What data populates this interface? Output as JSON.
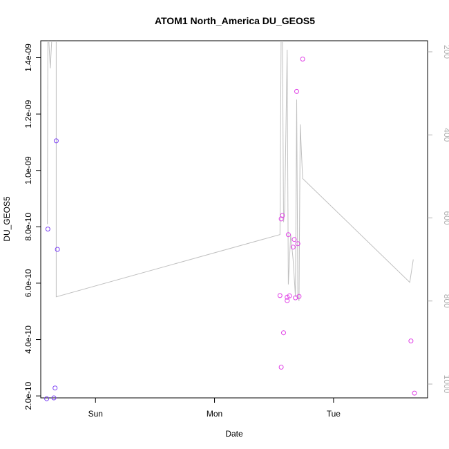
{
  "chart_data": {
    "type": "scatter",
    "title": "ATOM1 North_America DU_GEOS5",
    "xlabel": "Date",
    "ylabel": "DU_GEOS5",
    "x_ticks": [
      {
        "label": "Sun",
        "value": 1.0
      },
      {
        "label": "Mon",
        "value": 2.0
      },
      {
        "label": "Tue",
        "value": 3.0
      }
    ],
    "xlim": [
      0.54,
      3.79
    ],
    "ylim": [
      1.93e-10,
      1.46e-09
    ],
    "y_ticks": [
      {
        "label": "2.0e-10",
        "value": 2e-10
      },
      {
        "label": "4.0e-10",
        "value": 4e-10
      },
      {
        "label": "6.0e-10",
        "value": 6e-10
      },
      {
        "label": "8.0e-10",
        "value": 8e-10
      },
      {
        "label": "1.0e-09",
        "value": 1e-09
      },
      {
        "label": "1.2e-09",
        "value": 1.2e-09
      },
      {
        "label": "1.4e-09",
        "value": 1.4e-09
      }
    ],
    "right_axis": {
      "color": "#b0b0b0",
      "ticks": [
        {
          "label": "200",
          "value": 200
        },
        {
          "label": "400",
          "value": 400
        },
        {
          "label": "600",
          "value": 600
        },
        {
          "label": "800",
          "value": 800
        },
        {
          "label": "1000",
          "value": 1000
        }
      ]
    },
    "line": {
      "color": "#c0c0c0",
      "points": [
        {
          "x": 0.596,
          "y_right": 615
        },
        {
          "x": 0.6,
          "y_right": 140
        },
        {
          "x": 0.6,
          "y_right": 130
        },
        {
          "x": 0.62,
          "y_right": 240
        },
        {
          "x": 0.64,
          "y_right": 130
        },
        {
          "x": 0.67,
          "y_right": 120
        },
        {
          "x": 0.67,
          "y_right": 790
        },
        {
          "x": 2.55,
          "y_right": 640
        },
        {
          "x": 2.56,
          "y_right": 125
        },
        {
          "x": 2.57,
          "y_right": 130
        },
        {
          "x": 2.58,
          "y_right": 610
        },
        {
          "x": 2.59,
          "y_right": 580
        },
        {
          "x": 2.61,
          "y_right": 195
        },
        {
          "x": 2.62,
          "y_right": 760
        },
        {
          "x": 2.64,
          "y_right": 640
        },
        {
          "x": 2.66,
          "y_right": 700
        },
        {
          "x": 2.68,
          "y_right": 790
        },
        {
          "x": 2.69,
          "y_right": 315
        },
        {
          "x": 2.7,
          "y_right": 790
        },
        {
          "x": 2.71,
          "y_right": 800
        },
        {
          "x": 2.72,
          "y_right": 375
        },
        {
          "x": 2.74,
          "y_right": 505
        },
        {
          "x": 3.64,
          "y_right": 755
        },
        {
          "x": 3.67,
          "y_right": 700
        }
      ]
    },
    "series": [
      {
        "color": "#7a3df5",
        "points": [
          {
            "x": 0.59,
            "y": 1.9e-10
          },
          {
            "x": 0.6,
            "y": 7.92e-10
          },
          {
            "x": 0.65,
            "y": 1.93e-10
          },
          {
            "x": 0.66,
            "y": 2.28e-10
          },
          {
            "x": 0.67,
            "y": 1.105e-09
          },
          {
            "x": 0.68,
            "y": 7.2e-10
          }
        ]
      },
      {
        "color": "#e040e6",
        "points": [
          {
            "x": 2.55,
            "y": 5.56e-10
          },
          {
            "x": 2.56,
            "y": 8.28e-10
          },
          {
            "x": 2.56,
            "y": 3.02e-10
          },
          {
            "x": 2.57,
            "y": 8.4e-10
          },
          {
            "x": 2.58,
            "y": 4.24e-10
          },
          {
            "x": 2.61,
            "y": 5.5e-10
          },
          {
            "x": 2.61,
            "y": 5.38e-10
          },
          {
            "x": 2.62,
            "y": 7.72e-10
          },
          {
            "x": 2.63,
            "y": 5.55e-10
          },
          {
            "x": 2.66,
            "y": 7.28e-10
          },
          {
            "x": 2.67,
            "y": 7.55e-10
          },
          {
            "x": 2.68,
            "y": 5.48e-10
          },
          {
            "x": 2.69,
            "y": 1.28e-09
          },
          {
            "x": 2.7,
            "y": 7.4e-10
          },
          {
            "x": 2.71,
            "y": 5.53e-10
          },
          {
            "x": 2.74,
            "y": 1.395e-09
          },
          {
            "x": 3.65,
            "y": 3.95e-10
          },
          {
            "x": 3.68,
            "y": 2.1e-10
          }
        ]
      }
    ]
  }
}
